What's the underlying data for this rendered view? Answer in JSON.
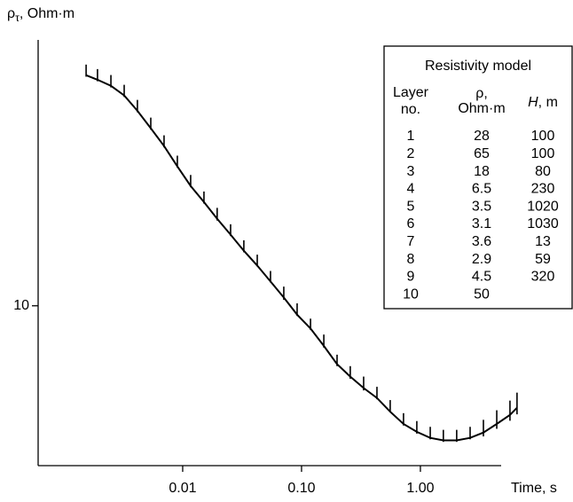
{
  "chart_data": {
    "type": "line",
    "y_label": {
      "symbol": "ρ",
      "subscript": "τ",
      "unit": ", Ohm·m"
    },
    "x_label": "Time, s",
    "xscale": "log",
    "yscale": "log",
    "xlim": [
      0.000608,
      4.78
    ],
    "ylim": [
      2.7,
      78
    ],
    "xticks": [
      0.01,
      {
        "value": 0.1,
        "label": "0.10"
      },
      {
        "value": 1,
        "label": "1.00"
      }
    ],
    "yticks": [
      10
    ],
    "x": [
      0.00154,
      0.00192,
      0.00249,
      0.00322,
      0.00416,
      0.00539,
      0.00697,
      0.00902,
      0.01167,
      0.0151,
      0.0195,
      0.0253,
      0.0327,
      0.0424,
      0.0548,
      0.0709,
      0.0918,
      0.119,
      0.154,
      0.199,
      0.257,
      0.333,
      0.431,
      0.557,
      0.721,
      0.933,
      1.21,
      1.56,
      2.02,
      2.62,
      3.39,
      4.39,
      5.67,
      6.5
    ],
    "series": [
      {
        "role": "measured",
        "color": "#000000",
        "values": [
          68.7,
          66.2,
          63.0,
          58.2,
          51.4,
          44.5,
          38.5,
          32.6,
          27.8,
          24.3,
          21.2,
          18.6,
          16.3,
          14.5,
          12.7,
          11.1,
          9.7,
          8.6,
          7.5,
          6.4,
          5.8,
          5.3,
          4.9,
          4.4,
          3.95,
          3.7,
          3.53,
          3.45,
          3.45,
          3.53,
          3.68,
          3.95,
          4.25,
          4.51
        ],
        "errors": [
          3.4,
          3.3,
          3.2,
          2.9,
          2.6,
          2.2,
          1.9,
          1.6,
          1.4,
          1.2,
          1.1,
          0.9,
          0.8,
          0.7,
          0.6,
          0.6,
          0.5,
          0.4,
          0.4,
          0.3,
          0.3,
          0.3,
          0.25,
          0.22,
          0.2,
          0.19,
          0.18,
          0.17,
          0.17,
          0.18,
          0.25,
          0.3,
          0.35,
          0.4
        ]
      },
      {
        "role": "model",
        "color": "#000000",
        "values": [
          66.1,
          63.7,
          60.6,
          56.0,
          49.4,
          42.8,
          37.0,
          31.3,
          26.7,
          23.4,
          20.4,
          17.9,
          15.7,
          13.9,
          12.2,
          10.7,
          9.3,
          8.3,
          7.2,
          6.2,
          5.6,
          5.1,
          4.7,
          4.2,
          3.8,
          3.56,
          3.39,
          3.32,
          3.32,
          3.39,
          3.54,
          3.8,
          4.09,
          4.34
        ]
      }
    ],
    "table": {
      "title": "Resistivity model",
      "headers": [
        [
          "Layer",
          "no."
        ],
        [
          "ρ,",
          "Ohm·m"
        ],
        {
          "italic": "H",
          "rest": ", m"
        }
      ],
      "rows": [
        [
          1,
          28,
          100
        ],
        [
          2,
          65,
          100
        ],
        [
          3,
          18,
          80
        ],
        [
          4,
          6.5,
          230
        ],
        [
          5,
          3.5,
          1020
        ],
        [
          6,
          3.1,
          1030
        ],
        [
          7,
          3.6,
          13
        ],
        [
          8,
          2.9,
          59
        ],
        [
          9,
          4.5,
          320
        ],
        [
          10,
          50
        ]
      ]
    }
  }
}
